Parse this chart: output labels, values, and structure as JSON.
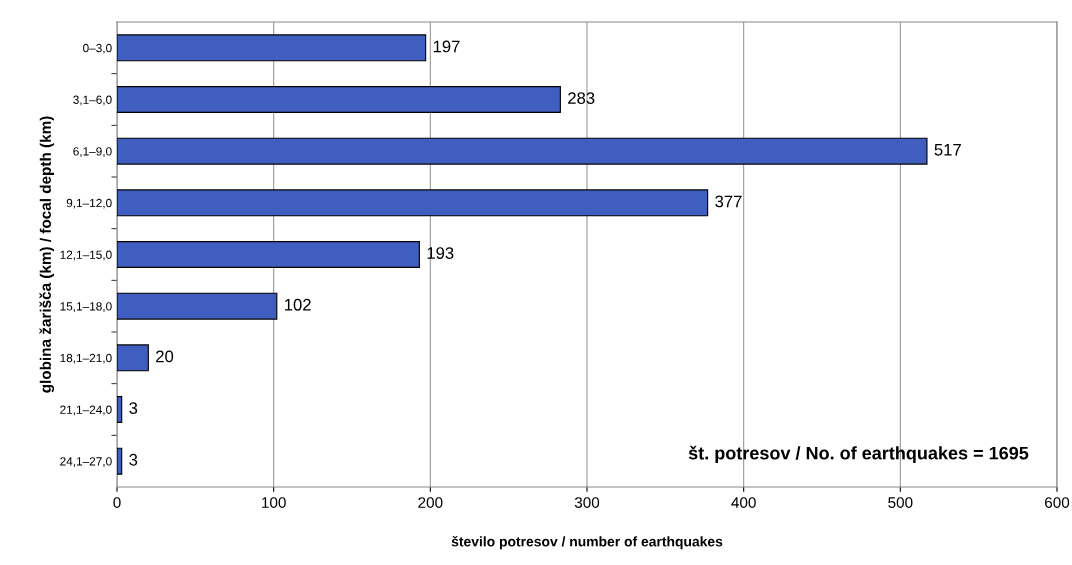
{
  "chart_data": {
    "type": "bar",
    "orientation": "horizontal",
    "xlabel": "število potresov / number of earthquakes",
    "ylabel": "globina žarišča (km) / focal depth (km)",
    "categories": [
      "0–3,0",
      "3,1–6,0",
      "6,1–9,0",
      "9,1–12,0",
      "12,1–15,0",
      "15,1–18,0",
      "18,1–21,0",
      "21,1–24,0",
      "24,1–27,0"
    ],
    "values": [
      197,
      283,
      517,
      377,
      193,
      102,
      20,
      3,
      3
    ],
    "color": "#3f5ebf",
    "xlim": [
      0,
      600
    ],
    "xticks": [
      0,
      100,
      200,
      300,
      400,
      500,
      600
    ],
    "grid": "x",
    "data_labels": true,
    "legend": false,
    "annotations": [
      "št. potresov / No. of earthquakes = 1695"
    ]
  }
}
